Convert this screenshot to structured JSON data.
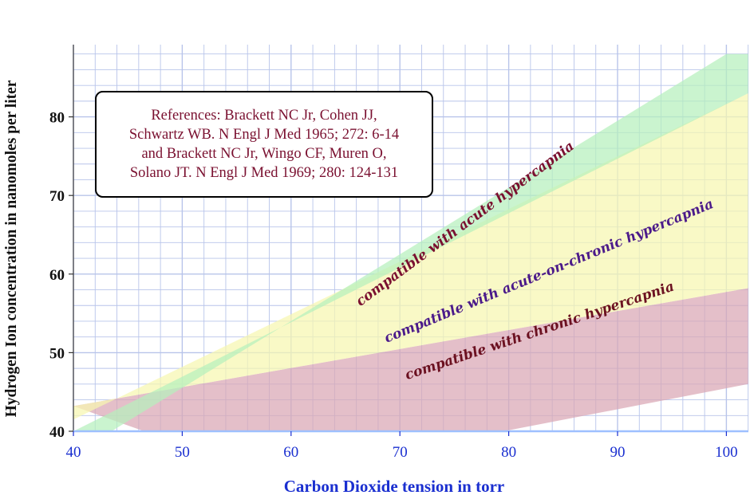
{
  "chart_data": {
    "type": "area",
    "title": "",
    "xlabel": "Carbon Dioxide tension in torr",
    "ylabel": "Hydrogen Ion concentration in nanomoles per liter",
    "xlim": [
      40,
      102
    ],
    "ylim": [
      40,
      89
    ],
    "x_ticks": [
      40,
      50,
      60,
      70,
      80,
      90,
      100
    ],
    "y_ticks": [
      40,
      50,
      60,
      70,
      80
    ],
    "grid": true,
    "series": [
      {
        "name": "compatible with chronic hypercapnia",
        "color": "#d9a6b4",
        "label_color": "#6b1020",
        "upper": [
          [
            40,
            43.2
          ],
          [
            102,
            58.2
          ]
        ],
        "lower": [
          [
            46.5,
            40
          ],
          [
            79.5,
            40
          ],
          [
            102,
            46.0
          ]
        ]
      },
      {
        "name": "compatible with acute-on-chronic hypercapnia",
        "color": "#f7f6b0",
        "label_color": "#4b1a8a",
        "upper": [
          [
            40,
            41.5
          ],
          [
            102,
            83.0
          ]
        ],
        "lower": [
          [
            40,
            43.2
          ],
          [
            102,
            58.2
          ]
        ]
      },
      {
        "name": "compatible with acute hypercapnia",
        "color": "#b6f0bc",
        "label_color": "#7a1030",
        "upper": [
          [
            43.5,
            40
          ],
          [
            100,
            88.0
          ],
          [
            102,
            88.0
          ]
        ],
        "lower": [
          [
            40,
            40
          ],
          [
            102,
            83.0
          ]
        ]
      }
    ],
    "annotation": [
      "References:  Brackett NC Jr, Cohen JJ,",
      "Schwartz WB. N Engl J Med 1965; 272: 6-14",
      "and Brackett NC Jr, Wingo CF, Muren O,",
      "Solano JT.  N Engl J Med 1969; 280: 124-131"
    ],
    "colors": {
      "grid": "#b8c4ea",
      "x_axis_text": "#1a2fd0",
      "y_axis_text": "#111111"
    }
  }
}
